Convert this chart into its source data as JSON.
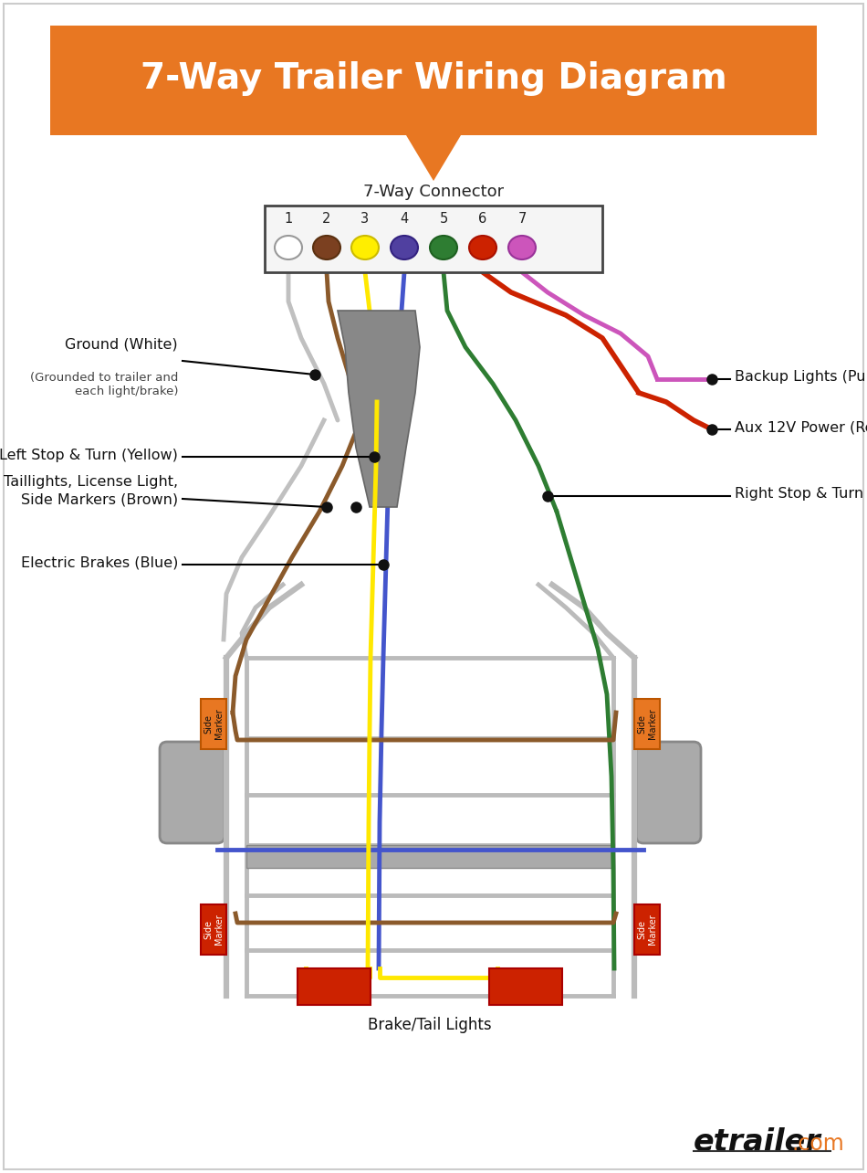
{
  "title": "7-Way Trailer Wiring Diagram",
  "title_color": "#FFFFFF",
  "title_bg": "#E87722",
  "connector_label": "7-Way Connector",
  "bg_color": "#FFFFFF",
  "pin_numbers": [
    "1",
    "2",
    "3",
    "4",
    "5",
    "6",
    "7"
  ],
  "pin_fill": [
    "#FFFFFF",
    "#7B4020",
    "#FFEE00",
    "#5040A0",
    "#2E7D32",
    "#CC2200",
    "#CC55BB"
  ],
  "pin_edge": [
    "#999999",
    "#5A3010",
    "#CCBB00",
    "#332280",
    "#1E6020",
    "#AA1100",
    "#993399"
  ],
  "w_white": "#C0C0C0",
  "w_brown": "#8B5A2B",
  "w_yellow": "#FFE800",
  "w_blue": "#4455CC",
  "w_green": "#2E7D32",
  "w_red": "#CC2200",
  "w_purple": "#CC55BB",
  "w_gray": "#888888",
  "frame_c": "#BBBBBB",
  "frame_dark": "#999999",
  "orange": "#E87722",
  "red_lt": "#CC2200",
  "wheel_c": "#AAAAAA",
  "lw": 3.5
}
